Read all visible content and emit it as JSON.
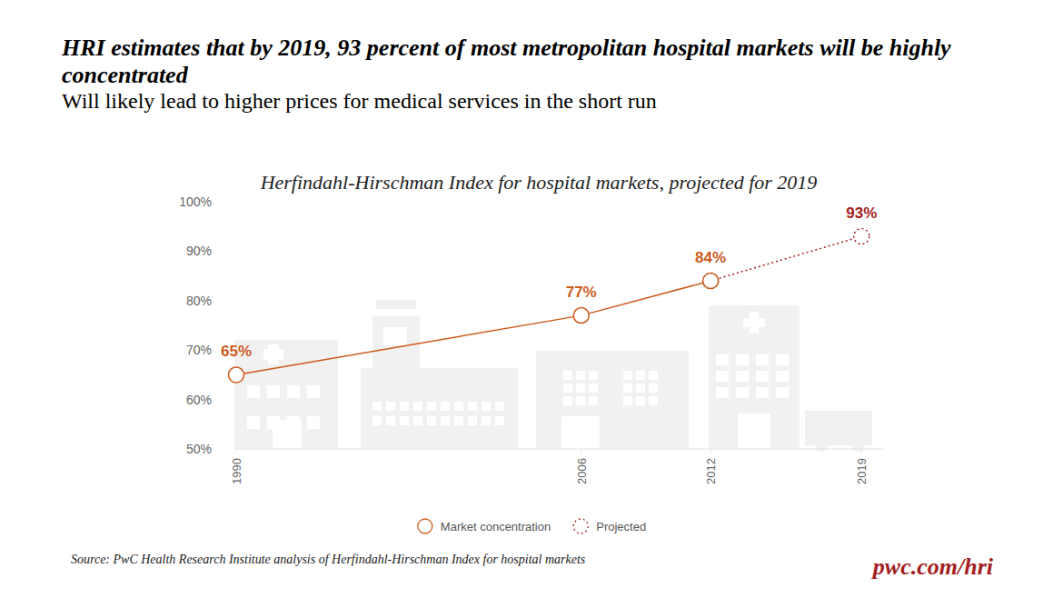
{
  "chart_data": {
    "type": "line",
    "title": "HRI estimates that by 2019, 93 percent of most metropolitan hospital markets will be highly concentrated",
    "subtitle": "Will likely lead to higher prices for medical services in the short run",
    "chart_title": "Herfindahl-Hirschman Index for hospital markets, projected for 2019",
    "source": "Source: PwC Health Research Institute analysis of Herfindahl-Hirschman Index for hospital markets",
    "footer": "pwc.com/hri",
    "x": [
      1990,
      2006,
      2012,
      2019
    ],
    "xlim": [
      1990,
      2020
    ],
    "xticks": [
      1990,
      2006,
      2012,
      2019
    ],
    "ylim": [
      50,
      100
    ],
    "yticks": [
      {
        "value": 50,
        "label": "50%"
      },
      {
        "value": 60,
        "label": "60%"
      },
      {
        "value": 70,
        "label": "70%"
      },
      {
        "value": 80,
        "label": "80%"
      },
      {
        "value": 90,
        "label": "90%"
      },
      {
        "value": 100,
        "label": "100%"
      }
    ],
    "grid": false,
    "legend": "bottom",
    "data_labels": true,
    "series": [
      {
        "name": "Market concentration",
        "color": "#cc5a1c",
        "marker": "circle",
        "line_style": "solid",
        "values": [
          65,
          77,
          84,
          null
        ],
        "value_labels": [
          "65%",
          "77%",
          "84%",
          null
        ]
      },
      {
        "name": "Projected",
        "color": "#a32020",
        "marker": "circle",
        "line_style": "dotted",
        "values": [
          null,
          null,
          84,
          93
        ],
        "value_labels": [
          null,
          null,
          null,
          "93%"
        ]
      }
    ]
  }
}
